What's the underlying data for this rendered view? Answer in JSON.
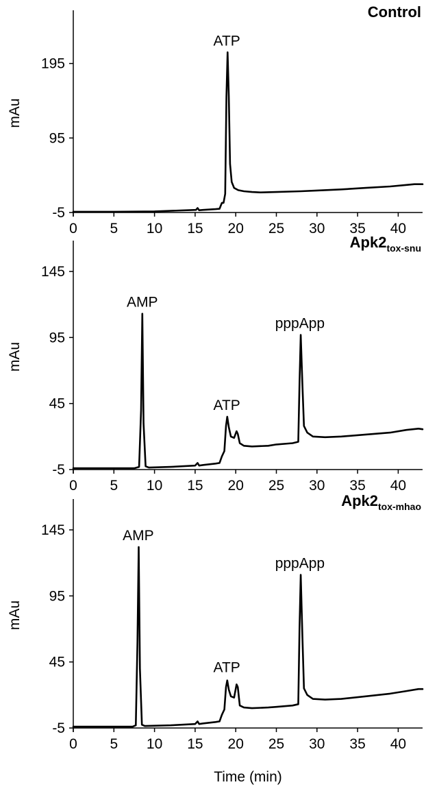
{
  "chart_data": [
    {
      "type": "line",
      "title": "Control",
      "title_sub": "",
      "ylabel": "mAu",
      "xlabel": "",
      "xlim": [
        0,
        43
      ],
      "ylim": [
        -5,
        225
      ],
      "x_ticks": [
        0,
        5,
        10,
        15,
        20,
        25,
        30,
        35,
        40
      ],
      "y_ticks": [
        -5,
        95,
        195
      ],
      "peak_labels": [
        {
          "text": "ATP",
          "x": 18.9,
          "y": 210
        }
      ],
      "series": [
        {
          "x": [
            0,
            5,
            10,
            14,
            15.1,
            15.3,
            15.5,
            16,
            17.5,
            18.0,
            18.3,
            18.5,
            18.7,
            18.85,
            19.0,
            19.15,
            19.3,
            19.5,
            19.8,
            20.3,
            21,
            22,
            23,
            25,
            28,
            30,
            33,
            36,
            39,
            41,
            42,
            43
          ],
          "y": [
            -4,
            -4,
            -3.5,
            -2,
            -1.5,
            1,
            -2,
            -1.5,
            -0.5,
            0,
            8,
            8,
            20,
            150,
            210,
            150,
            60,
            36,
            28,
            25,
            23.5,
            22.5,
            22,
            22.5,
            23.5,
            24.5,
            26,
            28,
            30,
            32,
            33,
            33
          ]
        }
      ]
    },
    {
      "type": "line",
      "title": "Apk2",
      "title_sub": "tox-snu",
      "ylabel": "mAu",
      "xlabel": "",
      "xlim": [
        0,
        43
      ],
      "ylim": [
        -5,
        145
      ],
      "x_ticks": [
        0,
        5,
        10,
        15,
        20,
        25,
        30,
        35,
        40
      ],
      "y_ticks": [
        -5,
        45,
        95,
        145
      ],
      "peak_labels": [
        {
          "text": "AMP",
          "x": 8.5,
          "y": 113
        },
        {
          "text": "ATP",
          "x": 18.9,
          "y": 35
        },
        {
          "text": "pppApp",
          "x": 27.9,
          "y": 97
        }
      ],
      "series": [
        {
          "x": [
            0,
            7.5,
            8.1,
            8.35,
            8.5,
            8.65,
            8.9,
            9.3,
            12,
            15,
            15.3,
            15.5,
            16,
            17.5,
            18.0,
            18.3,
            18.6,
            18.8,
            18.95,
            19.15,
            19.4,
            19.8,
            20.1,
            20.25,
            20.5,
            21,
            22,
            24,
            25,
            27,
            27.7,
            27.85,
            28.0,
            28.2,
            28.4,
            28.8,
            29.5,
            31,
            33,
            36,
            39,
            41,
            42.5,
            43
          ],
          "y": [
            -4,
            -4,
            -3,
            40,
            113,
            30,
            -2.5,
            -3.5,
            -3,
            -2,
            0,
            -2,
            -1.5,
            -0.5,
            0,
            5,
            9,
            28,
            35,
            27,
            20,
            19,
            24,
            22,
            15,
            13,
            12.5,
            13,
            14,
            15,
            16,
            60,
            97,
            60,
            28,
            23,
            20,
            19.5,
            20,
            21.5,
            23,
            25,
            26,
            25.5
          ]
        }
      ]
    },
    {
      "type": "line",
      "title": "Apk2",
      "title_sub": "tox-mhao",
      "ylabel": "mAu",
      "xlabel": "Time (min)",
      "xlim": [
        0,
        43
      ],
      "ylim": [
        -5,
        145
      ],
      "x_ticks": [
        0,
        5,
        10,
        15,
        20,
        25,
        30,
        35,
        40
      ],
      "y_ticks": [
        -5,
        45,
        95,
        145
      ],
      "peak_labels": [
        {
          "text": "AMP",
          "x": 8.0,
          "y": 132
        },
        {
          "text": "ATP",
          "x": 18.9,
          "y": 32
        },
        {
          "text": "pppApp",
          "x": 27.9,
          "y": 111
        }
      ],
      "series": [
        {
          "x": [
            0,
            7.3,
            7.7,
            7.9,
            8.05,
            8.2,
            8.45,
            8.8,
            12,
            15,
            15.3,
            15.5,
            16,
            17.5,
            18.0,
            18.3,
            18.6,
            18.8,
            18.95,
            19.15,
            19.4,
            19.8,
            20.1,
            20.25,
            20.5,
            21,
            22,
            24,
            25,
            27,
            27.7,
            27.85,
            28.0,
            28.2,
            28.4,
            28.8,
            29.5,
            31,
            33,
            36,
            39,
            41,
            42.5,
            43
          ],
          "y": [
            -4,
            -4,
            -3,
            60,
            132,
            40,
            -2.5,
            -3.5,
            -3,
            -2,
            0,
            -2,
            -1.5,
            -0.5,
            0,
            5,
            9,
            26,
            31,
            24,
            19,
            18,
            28,
            26,
            12,
            10.5,
            10,
            10.5,
            11,
            12,
            13,
            70,
            111,
            65,
            25,
            20,
            17,
            16.5,
            17,
            19,
            21,
            23,
            24.5,
            24.5
          ]
        }
      ]
    }
  ]
}
